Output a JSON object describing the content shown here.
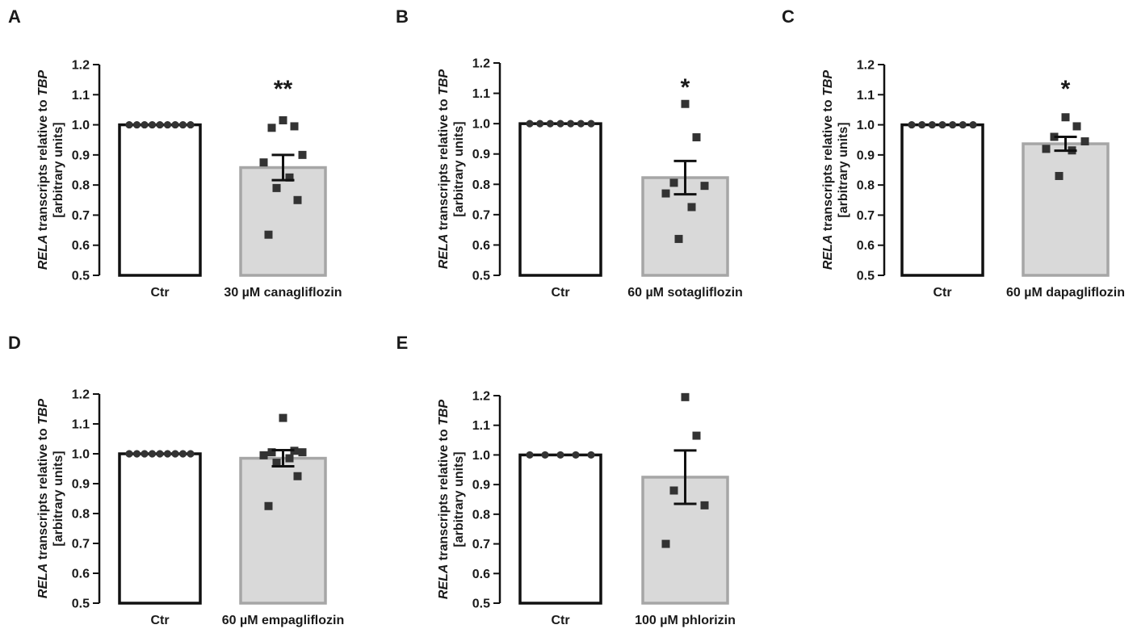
{
  "figure": {
    "ylabel_gene": "RELA",
    "ylabel_middle": " transcripts relative to ",
    "ylabel_ref": "TBP",
    "ylabel_line2": "[arbitrary units]",
    "colors": {
      "ctr_bar_fill": "#ffffff",
      "ctr_bar_stroke": "#111111",
      "treat_bar_fill": "#d9d9d9",
      "treat_bar_stroke": "#a6a6a6",
      "ctr_point": "#333333",
      "treat_point": "#333333",
      "error_bar": "#111111",
      "axis": "#111111"
    }
  },
  "chart_data": [
    {
      "panel": "A",
      "type": "bar",
      "categories": [
        "Ctr",
        "30 µM canagliflozin"
      ],
      "values": [
        1.0,
        0.858
      ],
      "error": [
        0,
        0.042
      ],
      "significance": "**",
      "ctr_points": [
        1,
        1,
        1,
        1,
        1,
        1,
        1,
        1,
        1
      ],
      "treat_points": [
        1.015,
        0.995,
        0.99,
        0.9,
        0.875,
        0.825,
        0.79,
        0.75,
        0.635
      ],
      "ylim": [
        0.5,
        1.2
      ],
      "yticks": [
        "0.5",
        "0.6",
        "0.7",
        "0.8",
        "0.9",
        "1.0",
        "1.1",
        "1.2"
      ],
      "ylabel": "RELA transcripts relative to TBP [arbitrary units]"
    },
    {
      "panel": "B",
      "type": "bar",
      "categories": [
        "Ctr",
        "60 µM sotagliflozin"
      ],
      "values": [
        1.0,
        0.822
      ],
      "error": [
        0,
        0.055
      ],
      "significance": "*",
      "ctr_points": [
        1,
        1,
        1,
        1,
        1,
        1,
        1
      ],
      "treat_points": [
        1.065,
        0.955,
        0.805,
        0.795,
        0.77,
        0.725,
        0.62
      ],
      "ylim": [
        0.5,
        1.2
      ],
      "yticks": [
        "0.5",
        "0.6",
        "0.7",
        "0.8",
        "0.9",
        "1.0",
        "1.1",
        "1.2"
      ],
      "ylabel": "RELA transcripts relative to TBP [arbitrary units]"
    },
    {
      "panel": "C",
      "type": "bar",
      "categories": [
        "Ctr",
        "60 µM dapagliflozin"
      ],
      "values": [
        1.0,
        0.937
      ],
      "error": [
        0,
        0.023
      ],
      "significance": "*",
      "ctr_points": [
        1,
        1,
        1,
        1,
        1,
        1,
        1
      ],
      "treat_points": [
        1.025,
        0.995,
        0.96,
        0.945,
        0.92,
        0.915,
        0.83
      ],
      "ylim": [
        0.5,
        1.2
      ],
      "yticks": [
        "0.5",
        "0.6",
        "0.7",
        "0.8",
        "0.9",
        "1.0",
        "1.1",
        "1.2"
      ],
      "ylabel": "RELA transcripts relative to TBP [arbitrary units]"
    },
    {
      "panel": "D",
      "type": "bar",
      "categories": [
        "Ctr",
        "60 µM empagliflozin"
      ],
      "values": [
        1.0,
        0.985
      ],
      "error": [
        0,
        0.027
      ],
      "significance": "",
      "ctr_points": [
        1,
        1,
        1,
        1,
        1,
        1,
        1,
        1,
        1
      ],
      "treat_points": [
        1.12,
        1.01,
        1.005,
        1.005,
        0.995,
        0.985,
        0.97,
        0.925,
        0.825
      ],
      "ylim": [
        0.5,
        1.2
      ],
      "yticks": [
        "0.5",
        "0.6",
        "0.7",
        "0.8",
        "0.9",
        "1.0",
        "1.1",
        "1.2"
      ],
      "ylabel": "RELA transcripts relative to TBP [arbitrary units]"
    },
    {
      "panel": "E",
      "type": "bar",
      "categories": [
        "Ctr",
        "100 µM phlorizin"
      ],
      "values": [
        1.0,
        0.925
      ],
      "error": [
        0,
        0.09
      ],
      "significance": "",
      "ctr_points": [
        1,
        1,
        1,
        1,
        1
      ],
      "treat_points": [
        1.195,
        1.065,
        0.88,
        0.83,
        0.7
      ],
      "ylim": [
        0.5,
        1.2
      ],
      "yticks": [
        "0.5",
        "0.6",
        "0.7",
        "0.8",
        "0.9",
        "1.0",
        "1.1",
        "1.2"
      ],
      "ylabel": "RELA transcripts relative to TBP [arbitrary units]"
    }
  ]
}
